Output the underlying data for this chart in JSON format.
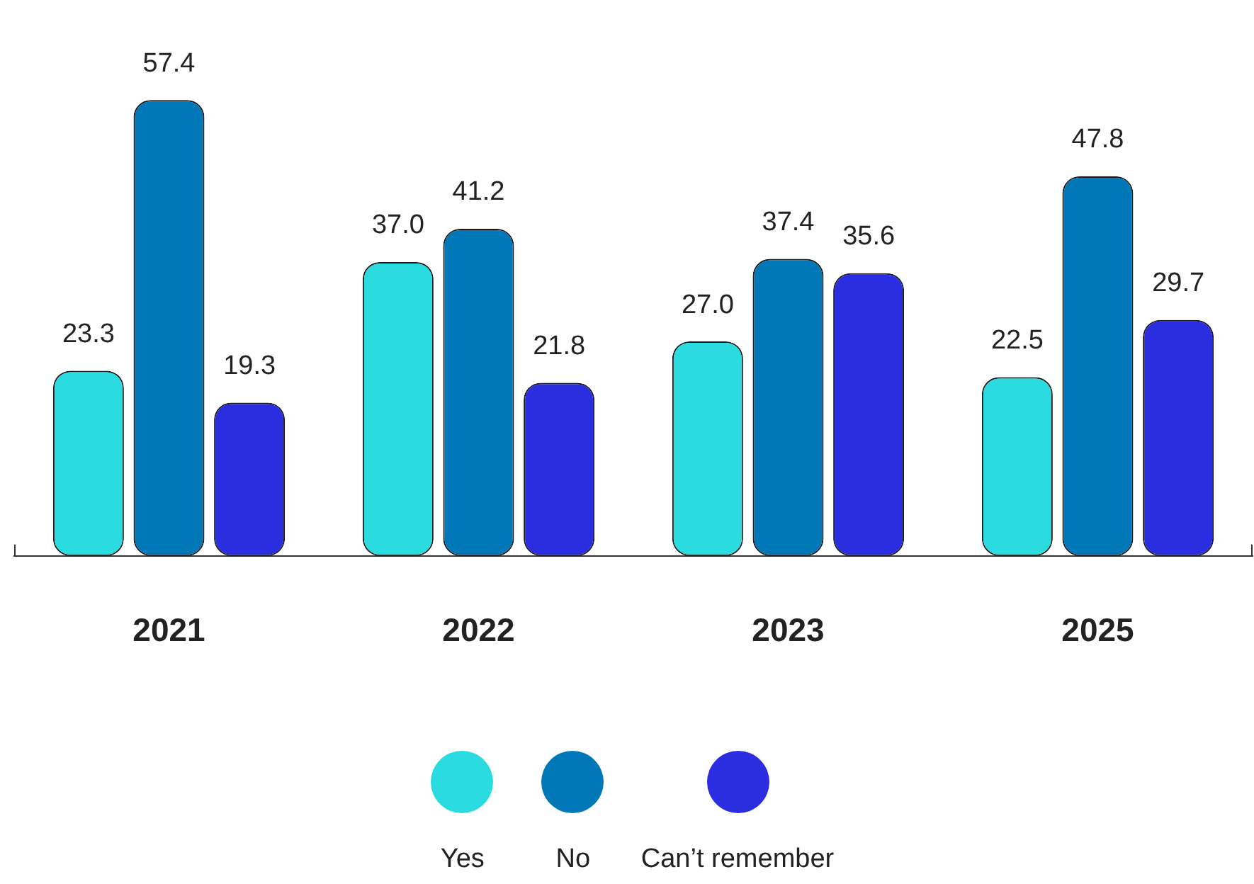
{
  "chart_data": {
    "type": "bar",
    "categories": [
      "2021",
      "2022",
      "2023",
      "2025"
    ],
    "series": [
      {
        "name": "Yes",
        "color": "#2adbe0",
        "values": [
          23.3,
          37.0,
          27.0,
          22.5
        ],
        "value_labels": [
          "23.3",
          "37.0",
          "27.0",
          "22.5"
        ]
      },
      {
        "name": "No",
        "color": "#0077b6",
        "values": [
          57.4,
          41.2,
          37.4,
          47.8
        ],
        "value_labels": [
          "57.4",
          "41.2",
          "37.4",
          "47.8"
        ]
      },
      {
        "name": "Can’t remember",
        "color": "#2b2ee0",
        "values": [
          19.3,
          21.8,
          35.6,
          29.7
        ],
        "value_labels": [
          "19.3",
          "21.8",
          "35.6",
          "29.7"
        ]
      }
    ],
    "legend": "bottom",
    "grid": false
  }
}
